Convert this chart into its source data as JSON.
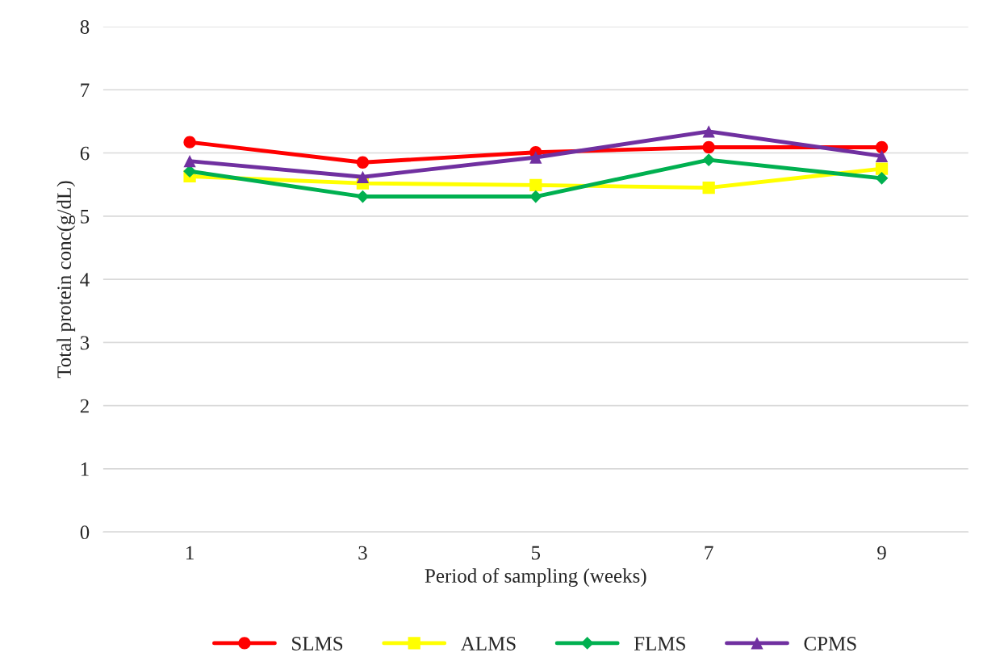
{
  "chart_data": {
    "type": "line",
    "xlabel": "Period of sampling (weeks)",
    "ylabel": "Total protein conc(g/dL)",
    "categories": [
      "1",
      "3",
      "5",
      "7",
      "9"
    ],
    "series": [
      {
        "name": "SLMS",
        "color": "#ff0000",
        "marker": "circle",
        "values": [
          6.17,
          5.85,
          6.01,
          6.09,
          6.09
        ]
      },
      {
        "name": "ALMS",
        "color": "#ffff00",
        "marker": "square",
        "values": [
          5.63,
          5.52,
          5.49,
          5.45,
          5.75
        ]
      },
      {
        "name": "FLMS",
        "color": "#00b050",
        "marker": "diamond",
        "values": [
          5.71,
          5.31,
          5.31,
          5.89,
          5.6
        ]
      },
      {
        "name": "CPMS",
        "color": "#7030a0",
        "marker": "triangle",
        "values": [
          5.87,
          5.62,
          5.93,
          6.34,
          5.95
        ]
      }
    ],
    "ylim": [
      0,
      8
    ],
    "yticks": [
      0,
      1,
      2,
      3,
      4,
      5,
      6,
      7,
      8
    ],
    "grid": "y",
    "legend": "bottom"
  }
}
